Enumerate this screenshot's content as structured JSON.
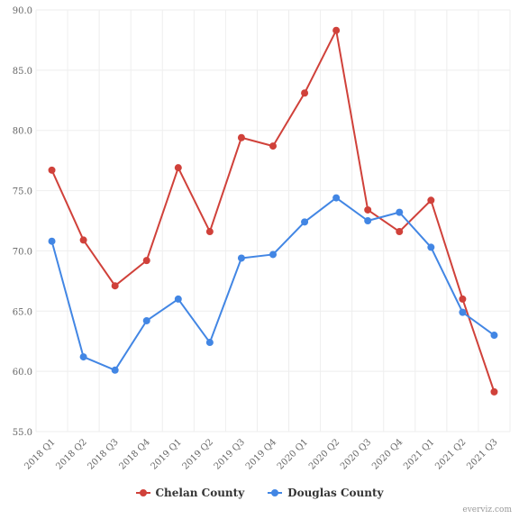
{
  "chart_data": {
    "type": "line",
    "title": "",
    "xlabel": "",
    "ylabel": "",
    "categories": [
      "2018 Q1",
      "2018 Q2",
      "2018 Q3",
      "2018 Q4",
      "2019 Q1",
      "2019 Q2",
      "2019 Q3",
      "2019 Q4",
      "2020 Q1",
      "2020 Q2",
      "2020 Q3",
      "2020 Q4",
      "2021 Q1",
      "2021 Q2",
      "2021 Q3"
    ],
    "ylim": [
      55,
      90
    ],
    "yticks": [
      "55.0",
      "60.0",
      "65.0",
      "70.0",
      "75.0",
      "80.0",
      "85.0",
      "90.0"
    ],
    "grid": true,
    "legend_position": "bottom-center",
    "series": [
      {
        "name": "Chelan County",
        "color": "#d0413a",
        "values": [
          76.7,
          70.9,
          67.1,
          69.2,
          76.9,
          71.6,
          79.4,
          78.7,
          83.1,
          88.3,
          73.4,
          71.6,
          74.2,
          66.0,
          58.3
        ]
      },
      {
        "name": "Douglas County",
        "color": "#4286e4",
        "values": [
          70.8,
          61.2,
          60.1,
          64.2,
          66.0,
          62.4,
          69.4,
          69.7,
          72.4,
          74.4,
          72.5,
          73.2,
          70.3,
          64.9,
          63.0
        ]
      }
    ]
  },
  "credit": "everviz.com"
}
